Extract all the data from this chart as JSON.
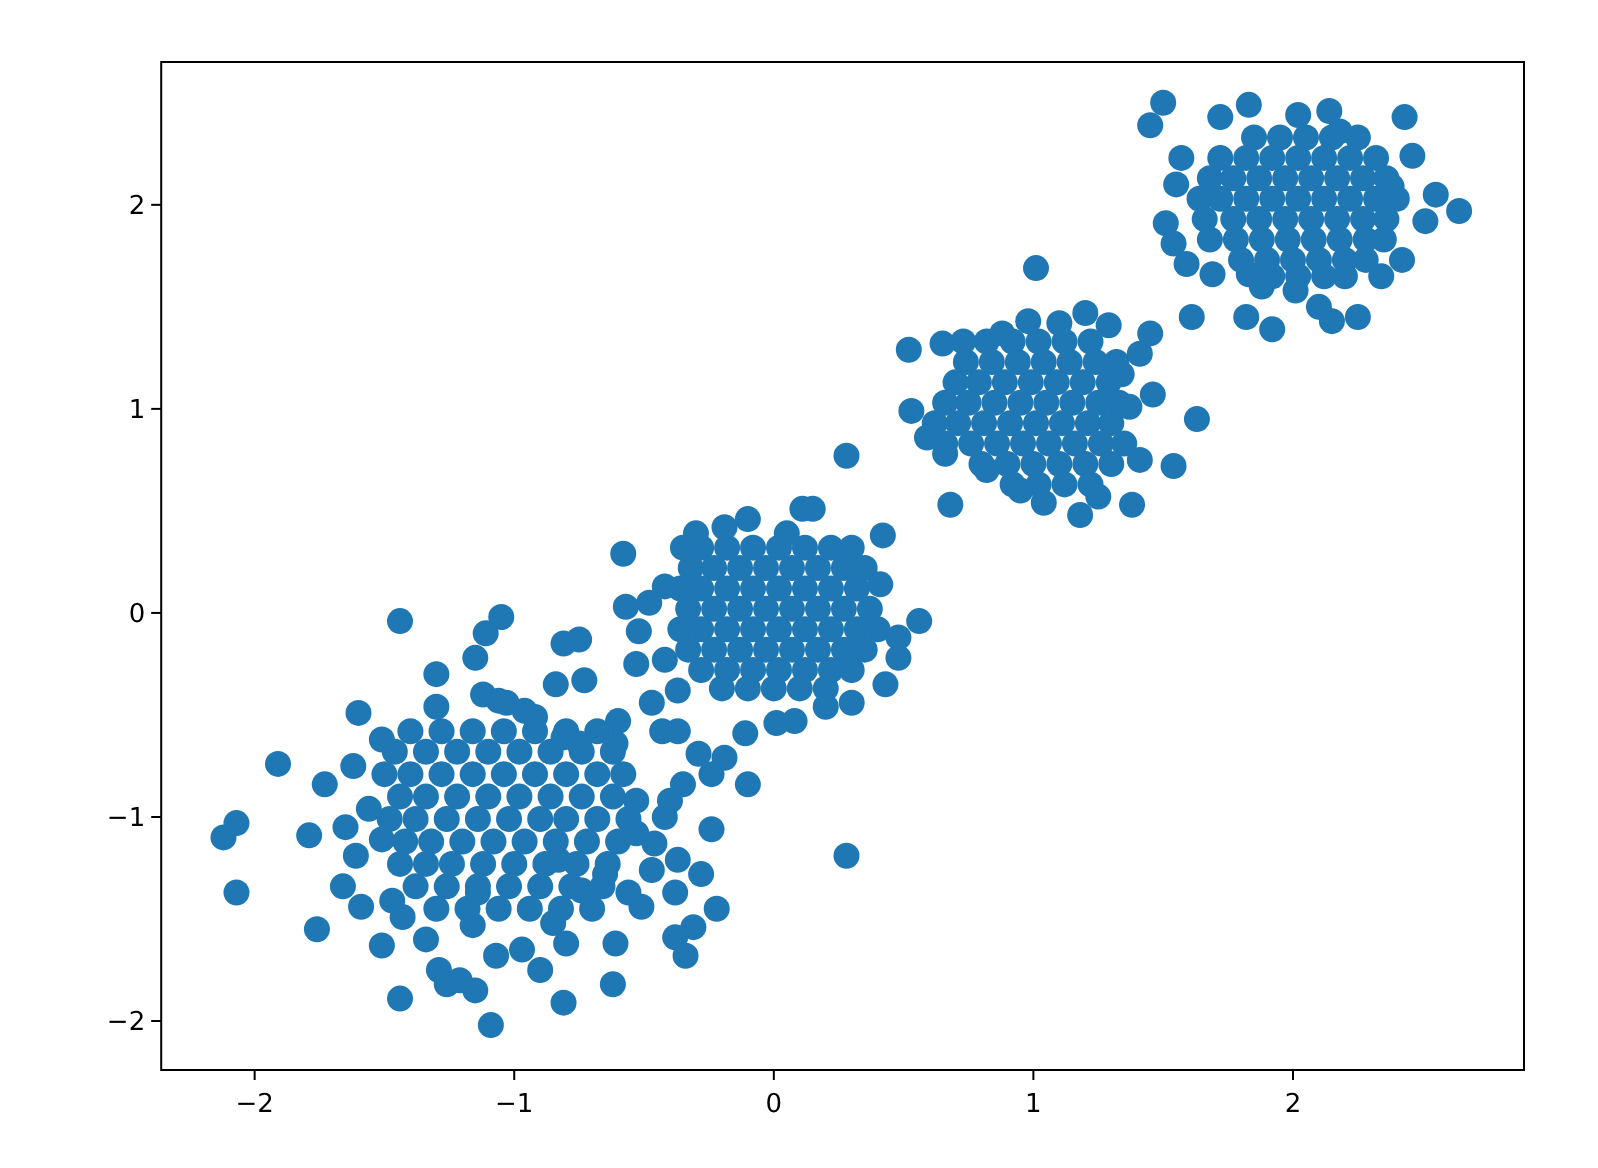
{
  "chart_data": {
    "type": "scatter",
    "color": "#1f77b4",
    "marker": "circle",
    "xlim": [
      -2.36,
      2.89
    ],
    "ylim": [
      -2.24,
      2.7
    ],
    "xticks": [
      {
        "value": -2,
        "label": "−2"
      },
      {
        "value": -1,
        "label": "−1"
      },
      0,
      1,
      2
    ],
    "yticks": [
      {
        "value": -2,
        "label": "−2"
      },
      {
        "value": -1,
        "label": "−1"
      },
      0,
      1,
      2
    ],
    "x": [
      -1.4,
      -1.28,
      -1.16,
      -1.04,
      -0.92,
      -0.8,
      -0.68,
      -1.46,
      -1.34,
      -1.22,
      -1.1,
      -0.98,
      -0.86,
      -0.74,
      -0.62,
      -1.5,
      -1.4,
      -1.28,
      -1.16,
      -1.04,
      -0.92,
      -0.8,
      -0.68,
      -0.58,
      -1.44,
      -1.34,
      -1.22,
      -1.1,
      -0.98,
      -0.86,
      -0.74,
      -0.62,
      -1.48,
      -1.38,
      -1.26,
      -1.14,
      -1.02,
      -0.9,
      -0.8,
      -0.68,
      -0.56,
      -1.42,
      -1.32,
      -1.2,
      -1.08,
      -0.96,
      -0.84,
      -0.72,
      -0.6,
      -1.44,
      -1.34,
      -1.24,
      -1.12,
      -1.0,
      -0.88,
      -0.76,
      -0.64,
      -1.38,
      -1.26,
      -1.14,
      -1.02,
      -0.9,
      -0.78,
      -0.66,
      -1.3,
      -1.18,
      -1.06,
      -0.94,
      -0.82,
      -0.7,
      -1.44,
      -1.05,
      -1.11,
      -1.15,
      -1.3,
      -1.6,
      -1.3,
      -1.12,
      -1.06,
      -1.91,
      -1.73,
      -1.62,
      -1.51,
      -2.07,
      -2.12,
      -2.07,
      -1.79,
      -1.65,
      -1.61,
      -1.66,
      -1.59,
      -1.76,
      -1.56,
      -1.51,
      -1.47,
      -1.51,
      -1.43,
      -1.44,
      -1.34,
      -1.29,
      -1.26,
      -1.15,
      -1.21,
      -1.09,
      -1.07,
      -1.16,
      -1.14,
      -0.97,
      -0.96,
      -0.81,
      -0.75,
      -0.84,
      -0.73,
      -0.92,
      -1.03,
      -0.81,
      -0.75,
      -0.6,
      -0.61,
      -0.43,
      -0.37,
      -0.29,
      -0.35,
      -0.19,
      -0.24,
      -0.1,
      -0.24,
      -0.42,
      -0.53,
      -0.46,
      -0.37,
      -0.47,
      -0.28,
      -0.38,
      -0.22,
      -0.31,
      -0.38,
      -0.34,
      -0.61,
      -0.62,
      -0.81,
      -0.8,
      -0.9,
      -0.85,
      -0.51,
      -0.56,
      -0.74,
      -0.65,
      -0.83,
      -0.53,
      -0.4,
      0.28,
      -0.28,
      -0.18,
      -0.08,
      0.02,
      0.12,
      0.22,
      0.3,
      -0.32,
      -0.23,
      -0.13,
      -0.03,
      0.07,
      0.17,
      0.27,
      0.35,
      -0.36,
      -0.28,
      -0.18,
      -0.08,
      0.02,
      0.12,
      0.22,
      0.32,
      -0.33,
      -0.23,
      -0.13,
      -0.03,
      0.07,
      0.17,
      0.27,
      0.37,
      -0.36,
      -0.28,
      -0.18,
      -0.08,
      0.02,
      0.12,
      0.22,
      0.32,
      0.4,
      -0.33,
      -0.23,
      -0.13,
      -0.03,
      0.07,
      0.17,
      0.27,
      0.35,
      -0.28,
      -0.18,
      -0.08,
      0.02,
      0.12,
      0.22,
      0.3,
      -0.2,
      -0.1,
      0.0,
      0.1,
      0.2,
      -0.57,
      -0.52,
      -0.53,
      -0.47,
      -0.37,
      -0.11,
      0.01,
      0.08,
      0.2,
      0.3,
      0.43,
      0.48,
      0.48,
      0.56,
      0.28,
      0.11,
      0.15,
      -0.58,
      0.42,
      0.41,
      -0.35,
      -0.3,
      -0.19,
      -0.1,
      0.05,
      -0.42,
      -0.48,
      -0.42,
      0.68,
      0.82,
      0.92,
      1.02,
      1.12,
      1.22,
      0.74,
      0.84,
      0.94,
      1.04,
      1.14,
      1.24,
      1.32,
      0.7,
      0.79,
      0.89,
      0.99,
      1.09,
      1.19,
      1.29,
      0.66,
      0.75,
      0.85,
      0.95,
      1.05,
      1.15,
      1.25,
      1.33,
      0.62,
      0.71,
      0.81,
      0.91,
      1.01,
      1.11,
      1.21,
      1.3,
      0.66,
      0.76,
      0.86,
      0.96,
      1.06,
      1.16,
      1.26,
      1.35,
      0.8,
      0.9,
      1.0,
      1.1,
      1.2,
      1.3,
      0.92,
      1.02,
      1.12,
      1.22,
      1.01,
      0.52,
      0.65,
      0.73,
      0.88,
      0.98,
      1.1,
      1.2,
      1.29,
      1.45,
      1.41,
      1.61,
      1.34,
      1.46,
      1.37,
      1.63,
      1.41,
      1.54,
      1.38,
      1.18,
      1.04,
      0.53,
      0.59,
      0.66,
      0.82,
      0.95,
      1.25,
      1.85,
      1.95,
      2.05,
      2.15,
      2.25,
      1.72,
      1.82,
      1.92,
      2.02,
      2.12,
      2.22,
      2.32,
      1.68,
      1.77,
      1.87,
      1.97,
      2.07,
      2.17,
      2.27,
      2.36,
      1.64,
      1.72,
      1.82,
      1.92,
      2.02,
      2.12,
      2.22,
      2.32,
      2.4,
      1.66,
      1.77,
      1.87,
      1.97,
      2.07,
      2.17,
      2.27,
      2.36,
      1.68,
      1.78,
      1.88,
      1.98,
      2.08,
      2.18,
      2.28,
      2.35,
      1.8,
      1.9,
      2.0,
      2.1,
      2.2,
      2.28,
      1.92,
      2.02,
      2.12,
      2.2,
      1.5,
      1.45,
      1.72,
      1.83,
      2.02,
      2.14,
      2.43,
      2.46,
      1.57,
      1.55,
      1.51,
      1.54,
      1.59,
      1.69,
      1.82,
      1.92,
      1.83,
      1.88,
      2.01,
      2.1,
      2.15,
      2.25,
      2.34,
      2.42,
      2.51,
      2.55,
      2.64,
      2.38,
      2.18
    ],
    "values": [
      -0.58,
      -0.58,
      -0.58,
      -0.58,
      -0.58,
      -0.58,
      -0.58,
      -0.68,
      -0.68,
      -0.68,
      -0.68,
      -0.68,
      -0.68,
      -0.68,
      -0.68,
      -0.79,
      -0.79,
      -0.79,
      -0.79,
      -0.79,
      -0.79,
      -0.79,
      -0.79,
      -0.79,
      -0.9,
      -0.9,
      -0.9,
      -0.9,
      -0.9,
      -0.9,
      -0.9,
      -0.9,
      -1.01,
      -1.01,
      -1.01,
      -1.01,
      -1.01,
      -1.01,
      -1.01,
      -1.01,
      -1.01,
      -1.12,
      -1.12,
      -1.12,
      -1.12,
      -1.12,
      -1.12,
      -1.12,
      -1.12,
      -1.23,
      -1.23,
      -1.23,
      -1.23,
      -1.23,
      -1.23,
      -1.23,
      -1.23,
      -1.34,
      -1.34,
      -1.34,
      -1.34,
      -1.34,
      -1.34,
      -1.34,
      -1.45,
      -1.45,
      -1.45,
      -1.45,
      -1.45,
      -1.45,
      -0.04,
      -0.02,
      -0.1,
      -0.22,
      -0.3,
      -0.49,
      -0.46,
      -0.4,
      -0.43,
      -0.74,
      -0.84,
      -0.75,
      -0.62,
      -1.03,
      -1.1,
      -1.37,
      -1.09,
      -1.05,
      -1.19,
      -1.34,
      -1.44,
      -1.55,
      -0.96,
      -1.11,
      -1.41,
      -1.63,
      -1.49,
      -1.89,
      -1.6,
      -1.75,
      -1.82,
      -1.85,
      -1.8,
      -2.02,
      -1.68,
      -1.53,
      -1.37,
      -1.65,
      -0.48,
      -0.15,
      -0.13,
      -0.35,
      -0.33,
      -0.51,
      -0.44,
      -0.61,
      -0.64,
      -0.53,
      -0.64,
      -0.58,
      -0.58,
      -0.69,
      -0.84,
      -0.71,
      -0.79,
      -0.84,
      -1.06,
      -1.0,
      -1.08,
      -1.13,
      -1.21,
      -1.26,
      -1.28,
      -1.37,
      -1.45,
      -1.54,
      -1.59,
      -1.68,
      -1.62,
      -1.82,
      -1.91,
      -1.62,
      -1.75,
      -1.52,
      -1.44,
      -1.37,
      -1.36,
      -1.28,
      -1.21,
      -0.92,
      -0.92,
      -1.19,
      0.32,
      0.32,
      0.32,
      0.32,
      0.32,
      0.32,
      0.32,
      0.22,
      0.22,
      0.22,
      0.22,
      0.22,
      0.22,
      0.22,
      0.22,
      0.12,
      0.12,
      0.12,
      0.12,
      0.12,
      0.12,
      0.12,
      0.12,
      0.02,
      0.02,
      0.02,
      0.02,
      0.02,
      0.02,
      0.02,
      0.02,
      -0.08,
      -0.08,
      -0.08,
      -0.08,
      -0.08,
      -0.08,
      -0.08,
      -0.08,
      -0.08,
      -0.18,
      -0.18,
      -0.18,
      -0.18,
      -0.18,
      -0.18,
      -0.18,
      -0.18,
      -0.28,
      -0.28,
      -0.28,
      -0.28,
      -0.28,
      -0.28,
      -0.28,
      -0.37,
      -0.37,
      -0.37,
      -0.37,
      -0.37,
      0.03,
      -0.09,
      -0.25,
      -0.44,
      -0.38,
      -0.59,
      -0.54,
      -0.53,
      -0.46,
      -0.44,
      -0.35,
      -0.22,
      -0.12,
      -0.04,
      0.77,
      0.51,
      0.51,
      0.29,
      0.38,
      0.14,
      0.32,
      0.39,
      0.42,
      0.46,
      0.39,
      0.13,
      0.05,
      -0.23,
      0.53,
      1.33,
      1.33,
      1.33,
      1.33,
      1.33,
      1.23,
      1.23,
      1.23,
      1.23,
      1.23,
      1.23,
      1.23,
      1.13,
      1.13,
      1.13,
      1.13,
      1.13,
      1.13,
      1.13,
      1.03,
      1.03,
      1.03,
      1.03,
      1.03,
      1.03,
      1.03,
      1.03,
      0.93,
      0.93,
      0.93,
      0.93,
      0.93,
      0.93,
      0.93,
      0.93,
      0.83,
      0.83,
      0.83,
      0.83,
      0.83,
      0.83,
      0.83,
      0.83,
      0.73,
      0.73,
      0.73,
      0.73,
      0.73,
      0.73,
      0.63,
      0.63,
      0.63,
      0.63,
      1.69,
      1.29,
      1.32,
      1.33,
      1.37,
      1.43,
      1.42,
      1.47,
      1.41,
      1.37,
      1.27,
      1.45,
      1.17,
      1.07,
      1.01,
      0.95,
      0.75,
      0.72,
      0.53,
      0.48,
      0.54,
      0.99,
      0.86,
      0.78,
      0.7,
      0.6,
      0.57,
      2.33,
      2.33,
      2.33,
      2.33,
      2.33,
      2.23,
      2.23,
      2.23,
      2.23,
      2.23,
      2.23,
      2.23,
      2.13,
      2.13,
      2.13,
      2.13,
      2.13,
      2.13,
      2.13,
      2.13,
      2.03,
      2.03,
      2.03,
      2.03,
      2.03,
      2.03,
      2.03,
      2.03,
      2.03,
      1.93,
      1.93,
      1.93,
      1.93,
      1.93,
      1.93,
      1.93,
      1.93,
      1.83,
      1.83,
      1.83,
      1.83,
      1.83,
      1.83,
      1.83,
      1.83,
      1.73,
      1.73,
      1.73,
      1.73,
      1.73,
      1.73,
      1.65,
      1.65,
      1.65,
      1.65,
      2.5,
      2.39,
      2.43,
      2.49,
      2.44,
      2.46,
      2.43,
      2.24,
      2.23,
      2.1,
      1.91,
      1.81,
      1.71,
      1.66,
      1.45,
      1.39,
      1.66,
      1.6,
      1.58,
      1.5,
      1.43,
      1.45,
      1.65,
      1.73,
      1.92,
      2.05,
      1.97,
      2.09,
      2.36
    ]
  }
}
